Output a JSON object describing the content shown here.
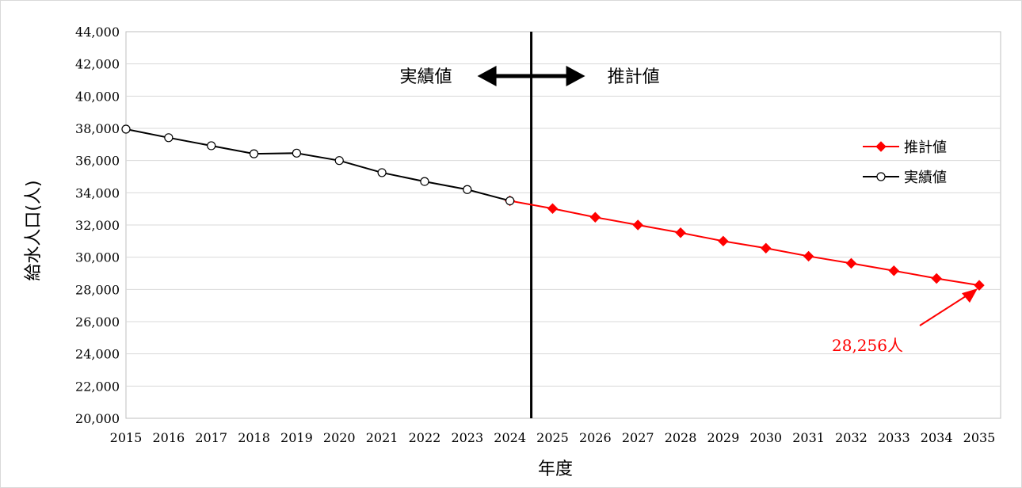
{
  "chart_data": {
    "type": "line",
    "x": [
      2015,
      2016,
      2017,
      2018,
      2019,
      2020,
      2021,
      2022,
      2023,
      2024,
      2025,
      2026,
      2027,
      2028,
      2029,
      2030,
      2031,
      2032,
      2033,
      2034,
      2035
    ],
    "x_tick_labels": [
      "2015",
      "2016",
      "2017",
      "2018",
      "2019",
      "2020",
      "2021",
      "2022",
      "2023",
      "2024",
      "2025",
      "2026",
      "2027",
      "2028",
      "2029",
      "2030",
      "2031",
      "2032",
      "2033",
      "2034",
      "2035"
    ],
    "xlabel": "年度",
    "ylabel": "給水人口(人)",
    "ylim": [
      20000,
      44000
    ],
    "y_tick_labels": [
      "20,000",
      "22,000",
      "24,000",
      "26,000",
      "28,000",
      "30,000",
      "32,000",
      "34,000",
      "36,000",
      "38,000",
      "40,000",
      "42,000",
      "44,000"
    ],
    "grid": true,
    "legend_position": "right",
    "series": [
      {
        "name": "推計値",
        "color": "#ff0000",
        "marker": "diamond",
        "x": [
          2024,
          2025,
          2026,
          2027,
          2028,
          2029,
          2030,
          2031,
          2032,
          2033,
          2034,
          2035
        ],
        "values": [
          33500,
          33020,
          32480,
          32000,
          31520,
          31000,
          30560,
          30060,
          29620,
          29160,
          28680,
          28256
        ]
      },
      {
        "name": "実績値",
        "color": "#000000",
        "marker": "circle-open",
        "x": [
          2015,
          2016,
          2017,
          2018,
          2019,
          2020,
          2021,
          2022,
          2023,
          2024
        ],
        "values": [
          37950,
          37420,
          36920,
          36420,
          36460,
          36000,
          35250,
          34700,
          34200,
          33500
        ]
      }
    ],
    "divider": {
      "between": [
        2024,
        2025
      ],
      "left_label": "実績値",
      "right_label": "推計値"
    },
    "annotation": {
      "text": "28,256人",
      "x": 2035,
      "y": 28256,
      "color": "#ff0000"
    }
  }
}
